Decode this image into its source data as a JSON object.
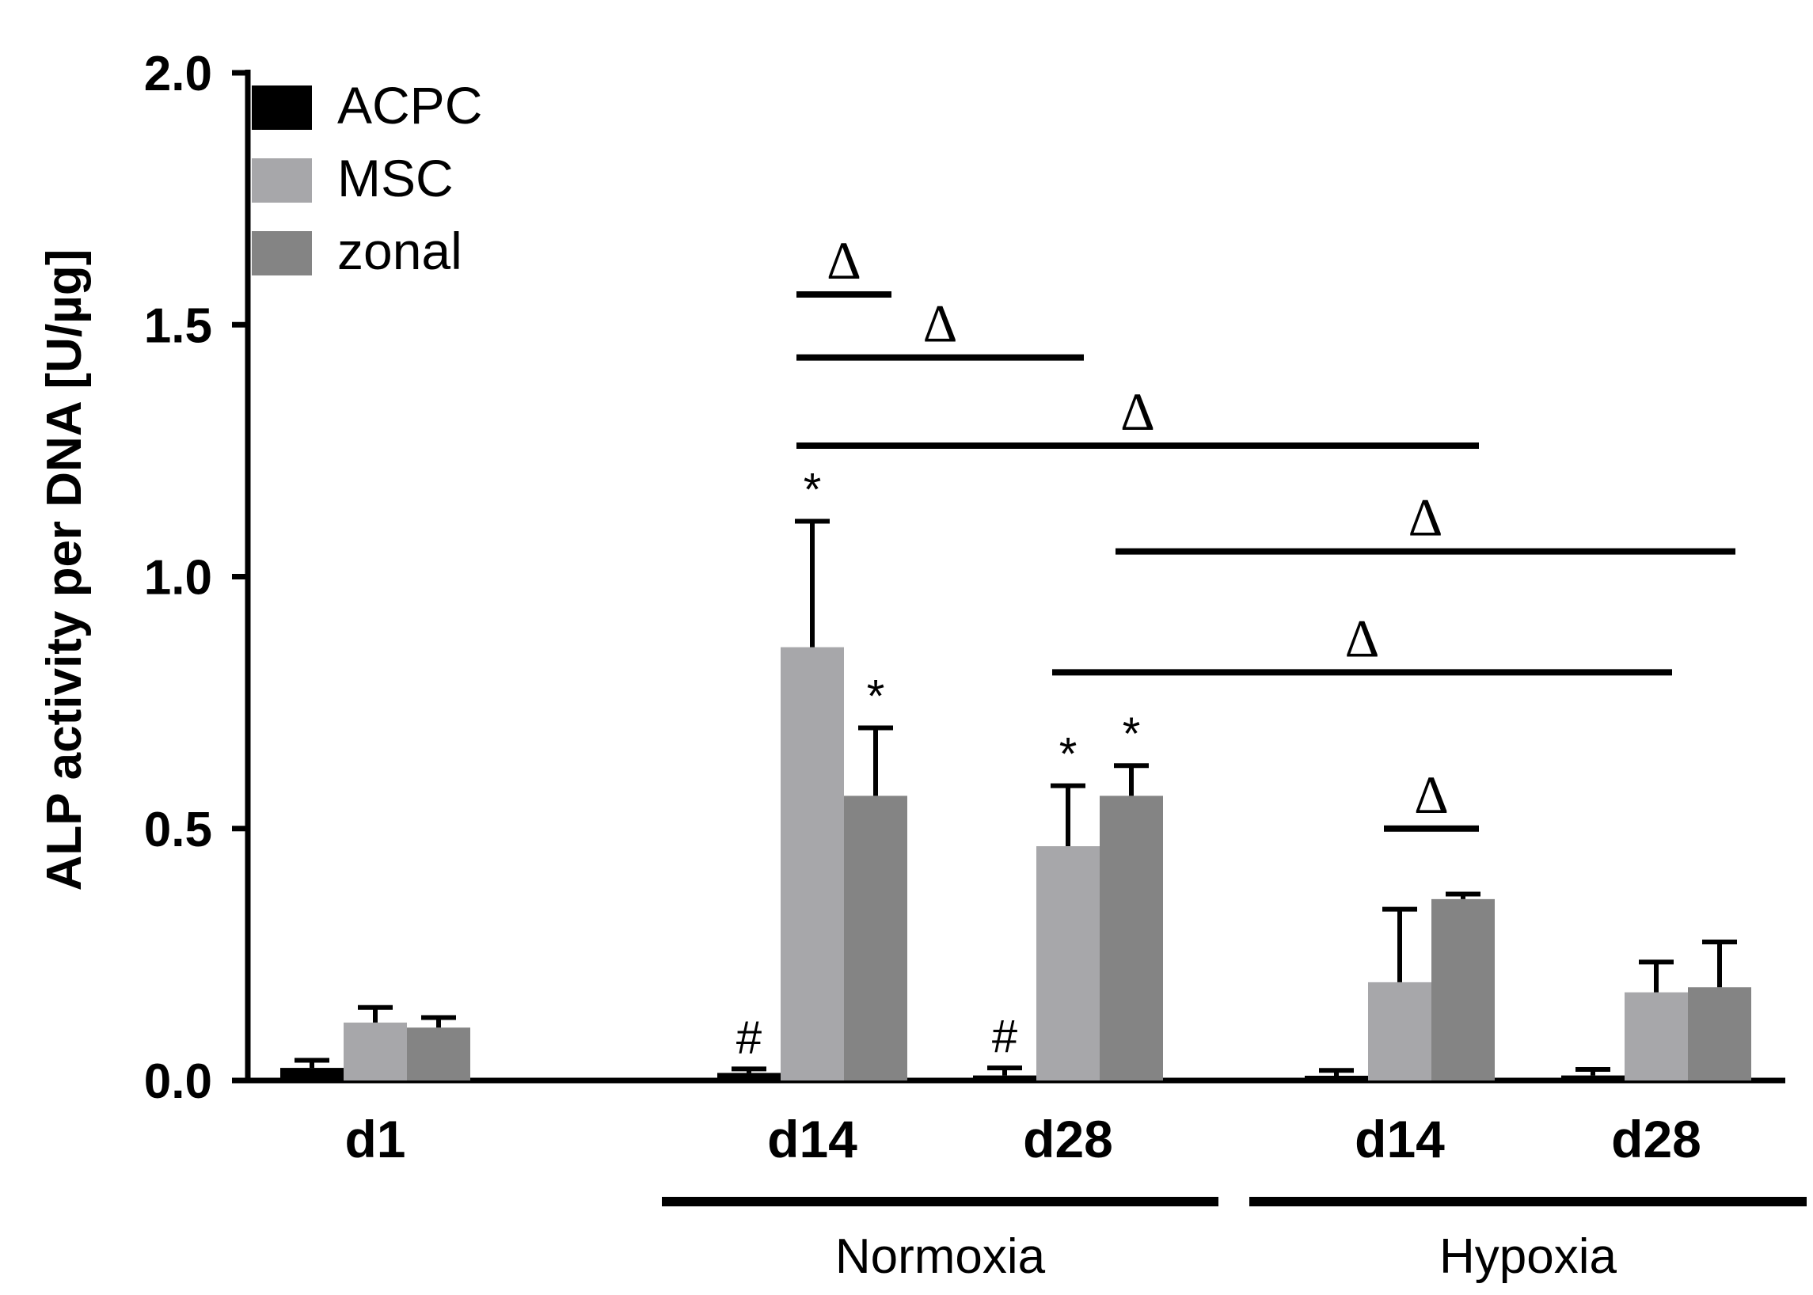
{
  "chart_data": {
    "type": "bar",
    "ylabel": "ALP activity per DNA [U/µg]",
    "ylim": [
      0,
      2.0
    ],
    "yticks": [
      "0.0",
      "0.5",
      "1.0",
      "1.5",
      "2.0"
    ],
    "ytick_values": [
      0,
      0.5,
      1.0,
      1.5,
      2.0
    ],
    "categories": [
      "d1",
      "d14",
      "d28",
      "d14",
      "d28"
    ],
    "conditions": [
      {
        "label": "Normoxia",
        "categories": [
          1,
          2
        ]
      },
      {
        "label": "Hypoxia",
        "categories": [
          3,
          4
        ]
      }
    ],
    "series": [
      {
        "name": "ACPC",
        "color": "#000000",
        "values": [
          0.025,
          0.015,
          0.01,
          0.005,
          0.01
        ],
        "errors": [
          0.015,
          0.008,
          0.015,
          0.015,
          0.012
        ]
      },
      {
        "name": "MSC",
        "color": "#a7a7aa",
        "values": [
          0.115,
          0.86,
          0.465,
          0.195,
          0.175
        ],
        "errors": [
          0.03,
          0.25,
          0.12,
          0.145,
          0.06
        ]
      },
      {
        "name": "zonal",
        "color": "#848484",
        "values": [
          0.105,
          0.565,
          0.565,
          0.36,
          0.185
        ],
        "errors": [
          0.02,
          0.135,
          0.06,
          0.01,
          0.09
        ]
      }
    ],
    "markers": [
      {
        "text": "#",
        "category": 1,
        "series": 0
      },
      {
        "text": "#",
        "category": 2,
        "series": 0
      },
      {
        "text": "*",
        "category": 1,
        "series": 1
      },
      {
        "text": "*",
        "category": 1,
        "series": 2
      },
      {
        "text": "*",
        "category": 2,
        "series": 1
      },
      {
        "text": "*",
        "category": 2,
        "series": 2
      }
    ],
    "brackets": [
      {
        "text": "Δ",
        "from": [
          1,
          1
        ],
        "to": [
          1,
          2
        ],
        "y": 1.56
      },
      {
        "text": "Δ",
        "from": [
          1,
          1
        ],
        "to": [
          2,
          1
        ],
        "y": 1.435
      },
      {
        "text": "Δ",
        "from": [
          1,
          1
        ],
        "to": [
          3,
          2
        ],
        "y": 1.26
      },
      {
        "text": "Δ",
        "from": [
          2,
          2
        ],
        "to": [
          4,
          2
        ],
        "y": 1.05
      },
      {
        "text": "Δ",
        "from": [
          2,
          1
        ],
        "to": [
          4,
          1
        ],
        "y": 0.81
      },
      {
        "text": "Δ",
        "from": [
          3,
          1
        ],
        "to": [
          3,
          2
        ],
        "y": 0.5
      }
    ]
  }
}
